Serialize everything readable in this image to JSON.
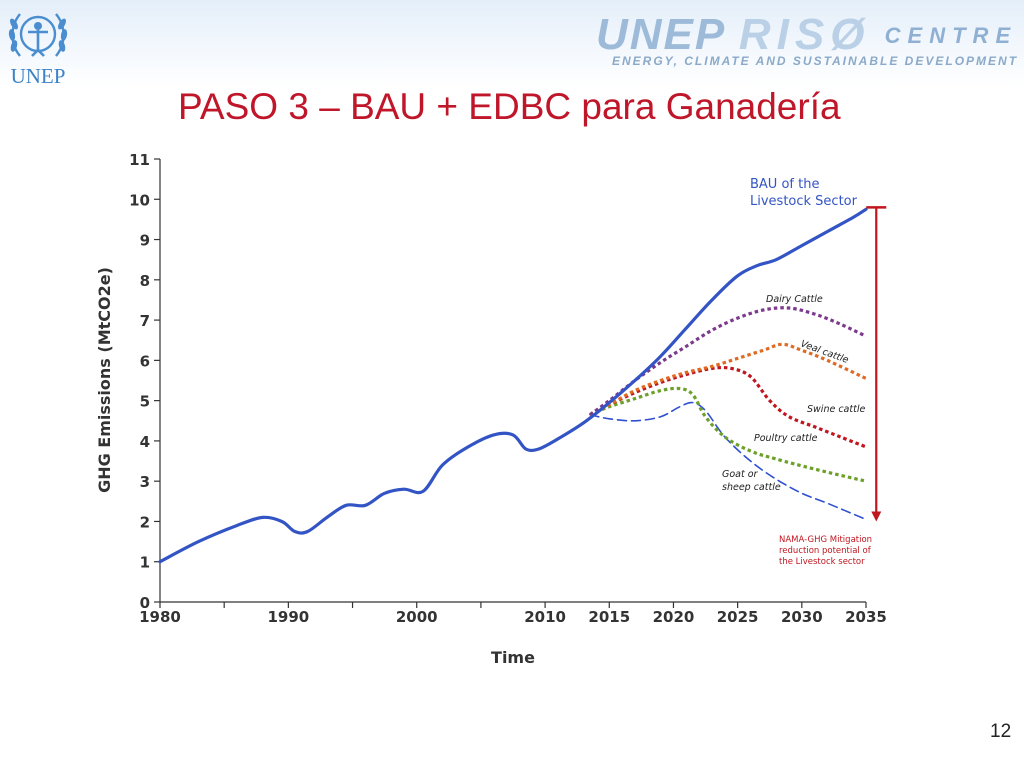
{
  "header": {
    "logo_text": "UNEP",
    "center_name_part1": "UNEP",
    "center_name_part2": "RISØ",
    "center_name_part3": "CENTRE",
    "center_subtitle": "ENERGY, CLIMATE AND SUSTAINABLE DEVELOPMENT"
  },
  "slide": {
    "title": "PASO 3 – BAU + EDBC para Ganadería",
    "page_number": "12"
  },
  "colors": {
    "bau": "#3354c4",
    "dairy": "#7b3a8c",
    "veal": "#e06a22",
    "swine": "#c0161f",
    "poultry": "#6da02a",
    "goat": "#2f4fd1",
    "mitigation": "#c0161f"
  },
  "chart_data": {
    "type": "line",
    "title": "",
    "xlabel": "Time",
    "ylabel": "GHG Emissions (MtCO2e)",
    "xlim": [
      1980,
      2035
    ],
    "ylim": [
      0,
      11
    ],
    "x_ticks": [
      1980,
      1990,
      2000,
      2010,
      2015,
      2020,
      2025,
      2030,
      2035
    ],
    "y_ticks": [
      0,
      1,
      2,
      3,
      4,
      5,
      6,
      7,
      8,
      9,
      10,
      11
    ],
    "series": [
      {
        "name": "BAU of the Livestock Sector",
        "key": "bau",
        "style": "solid",
        "points": [
          [
            1980,
            1.0
          ],
          [
            1983,
            1.5
          ],
          [
            1986,
            1.9
          ],
          [
            1988,
            2.1
          ],
          [
            1989.5,
            2.0
          ],
          [
            1990.5,
            1.75
          ],
          [
            1991.5,
            1.75
          ],
          [
            1993,
            2.1
          ],
          [
            1994.5,
            2.4
          ],
          [
            1996,
            2.4
          ],
          [
            1997.5,
            2.7
          ],
          [
            1999,
            2.8
          ],
          [
            2000.5,
            2.75
          ],
          [
            2002,
            3.4
          ],
          [
            2004,
            3.85
          ],
          [
            2006,
            4.15
          ],
          [
            2007.5,
            4.15
          ],
          [
            2008.5,
            3.8
          ],
          [
            2009.5,
            3.8
          ],
          [
            2011,
            4.05
          ],
          [
            2013,
            4.45
          ],
          [
            2015,
            4.95
          ],
          [
            2017,
            5.5
          ],
          [
            2019,
            6.1
          ],
          [
            2021,
            6.8
          ],
          [
            2023,
            7.5
          ],
          [
            2025,
            8.1
          ],
          [
            2026.5,
            8.35
          ],
          [
            2028,
            8.5
          ],
          [
            2030,
            8.85
          ],
          [
            2032,
            9.2
          ],
          [
            2034,
            9.55
          ],
          [
            2035,
            9.75
          ]
        ]
      },
      {
        "name": "Dairy Cattle",
        "key": "dairy",
        "style": "dotted",
        "points": [
          [
            2013.5,
            4.65
          ],
          [
            2015,
            5.0
          ],
          [
            2017,
            5.5
          ],
          [
            2019,
            5.95
          ],
          [
            2021,
            6.35
          ],
          [
            2023,
            6.75
          ],
          [
            2025,
            7.05
          ],
          [
            2027,
            7.25
          ],
          [
            2029,
            7.3
          ],
          [
            2031,
            7.15
          ],
          [
            2033,
            6.9
          ],
          [
            2035,
            6.6
          ]
        ]
      },
      {
        "name": "Veal cattle",
        "key": "veal",
        "style": "dotted",
        "points": [
          [
            2013.5,
            4.65
          ],
          [
            2015,
            4.9
          ],
          [
            2017,
            5.25
          ],
          [
            2019,
            5.5
          ],
          [
            2021,
            5.7
          ],
          [
            2023,
            5.85
          ],
          [
            2025,
            6.05
          ],
          [
            2027,
            6.25
          ],
          [
            2028.5,
            6.4
          ],
          [
            2030,
            6.25
          ],
          [
            2032,
            6.0
          ],
          [
            2035,
            5.55
          ]
        ]
      },
      {
        "name": "Swine cattle",
        "key": "swine",
        "style": "dotted",
        "points": [
          [
            2013.5,
            4.65
          ],
          [
            2015,
            4.9
          ],
          [
            2017,
            5.2
          ],
          [
            2019,
            5.45
          ],
          [
            2021,
            5.65
          ],
          [
            2023,
            5.8
          ],
          [
            2024.5,
            5.8
          ],
          [
            2026,
            5.6
          ],
          [
            2027.5,
            5.0
          ],
          [
            2029,
            4.6
          ],
          [
            2031,
            4.35
          ],
          [
            2033,
            4.1
          ],
          [
            2035,
            3.85
          ]
        ]
      },
      {
        "name": "Poultry cattle",
        "key": "poultry",
        "style": "dotted",
        "points": [
          [
            2013.5,
            4.65
          ],
          [
            2015,
            4.85
          ],
          [
            2017,
            5.05
          ],
          [
            2019,
            5.25
          ],
          [
            2020.5,
            5.3
          ],
          [
            2021.5,
            5.15
          ],
          [
            2022.5,
            4.6
          ],
          [
            2024,
            4.1
          ],
          [
            2026,
            3.75
          ],
          [
            2028,
            3.55
          ],
          [
            2031,
            3.3
          ],
          [
            2035,
            3.0
          ]
        ]
      },
      {
        "name": "Goat or sheep cattle",
        "key": "goat",
        "style": "dashed",
        "points": [
          [
            2013.5,
            4.65
          ],
          [
            2015,
            4.55
          ],
          [
            2017,
            4.5
          ],
          [
            2019,
            4.6
          ],
          [
            2020.5,
            4.85
          ],
          [
            2021.5,
            4.95
          ],
          [
            2022.5,
            4.75
          ],
          [
            2024,
            4.1
          ],
          [
            2026,
            3.5
          ],
          [
            2028,
            3.05
          ],
          [
            2030,
            2.7
          ],
          [
            2032,
            2.45
          ],
          [
            2035,
            2.05
          ]
        ]
      }
    ],
    "annotations": {
      "bau_label_line1": "BAU of the",
      "bau_label_line2": "Livestock Sector",
      "dairy_label": "Dairy Cattle",
      "veal_label": "Veal cattle",
      "swine_label": "Swine cattle",
      "poultry_label": "Poultry cattle",
      "goat_label_line1": "Goat or",
      "goat_label_line2": "sheep cattle",
      "mitigation_line1": "NAMA-GHG Mitigation",
      "mitigation_line2": "reduction potential of",
      "mitigation_line3": "the Livestock sector",
      "mitigation_range": [
        2.0,
        9.8
      ],
      "mitigation_year": 2035.8
    }
  }
}
